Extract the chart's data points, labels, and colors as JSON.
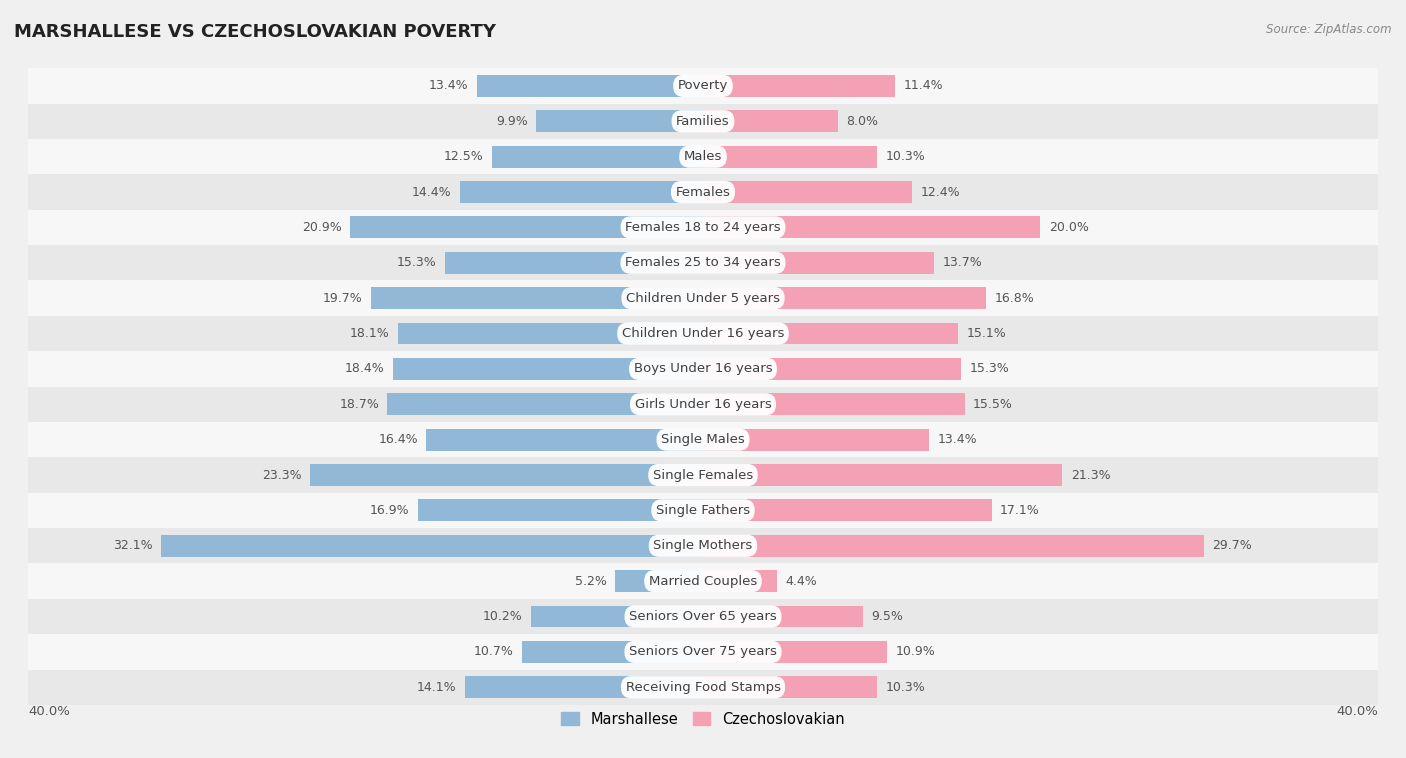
{
  "title": "MARSHALLESE VS CZECHOSLOVAKIAN POVERTY",
  "source": "Source: ZipAtlas.com",
  "categories": [
    "Poverty",
    "Families",
    "Males",
    "Females",
    "Females 18 to 24 years",
    "Females 25 to 34 years",
    "Children Under 5 years",
    "Children Under 16 years",
    "Boys Under 16 years",
    "Girls Under 16 years",
    "Single Males",
    "Single Females",
    "Single Fathers",
    "Single Mothers",
    "Married Couples",
    "Seniors Over 65 years",
    "Seniors Over 75 years",
    "Receiving Food Stamps"
  ],
  "marshallese": [
    13.4,
    9.9,
    12.5,
    14.4,
    20.9,
    15.3,
    19.7,
    18.1,
    18.4,
    18.7,
    16.4,
    23.3,
    16.9,
    32.1,
    5.2,
    10.2,
    10.7,
    14.1
  ],
  "czechoslovakian": [
    11.4,
    8.0,
    10.3,
    12.4,
    20.0,
    13.7,
    16.8,
    15.1,
    15.3,
    15.5,
    13.4,
    21.3,
    17.1,
    29.7,
    4.4,
    9.5,
    10.9,
    10.3
  ],
  "marshallese_color": "#92b8d8",
  "czechoslovakian_color": "#f4a0b5",
  "background_color": "#f0f0f0",
  "row_color_light": "#f7f7f7",
  "row_color_dark": "#e8e8e8",
  "xlim": 40.0,
  "legend_marshallese": "Marshallese",
  "legend_czechoslovakian": "Czechoslovakian",
  "bar_height": 0.62,
  "font_size_labels": 9.5,
  "font_size_title": 13,
  "font_size_values": 9
}
